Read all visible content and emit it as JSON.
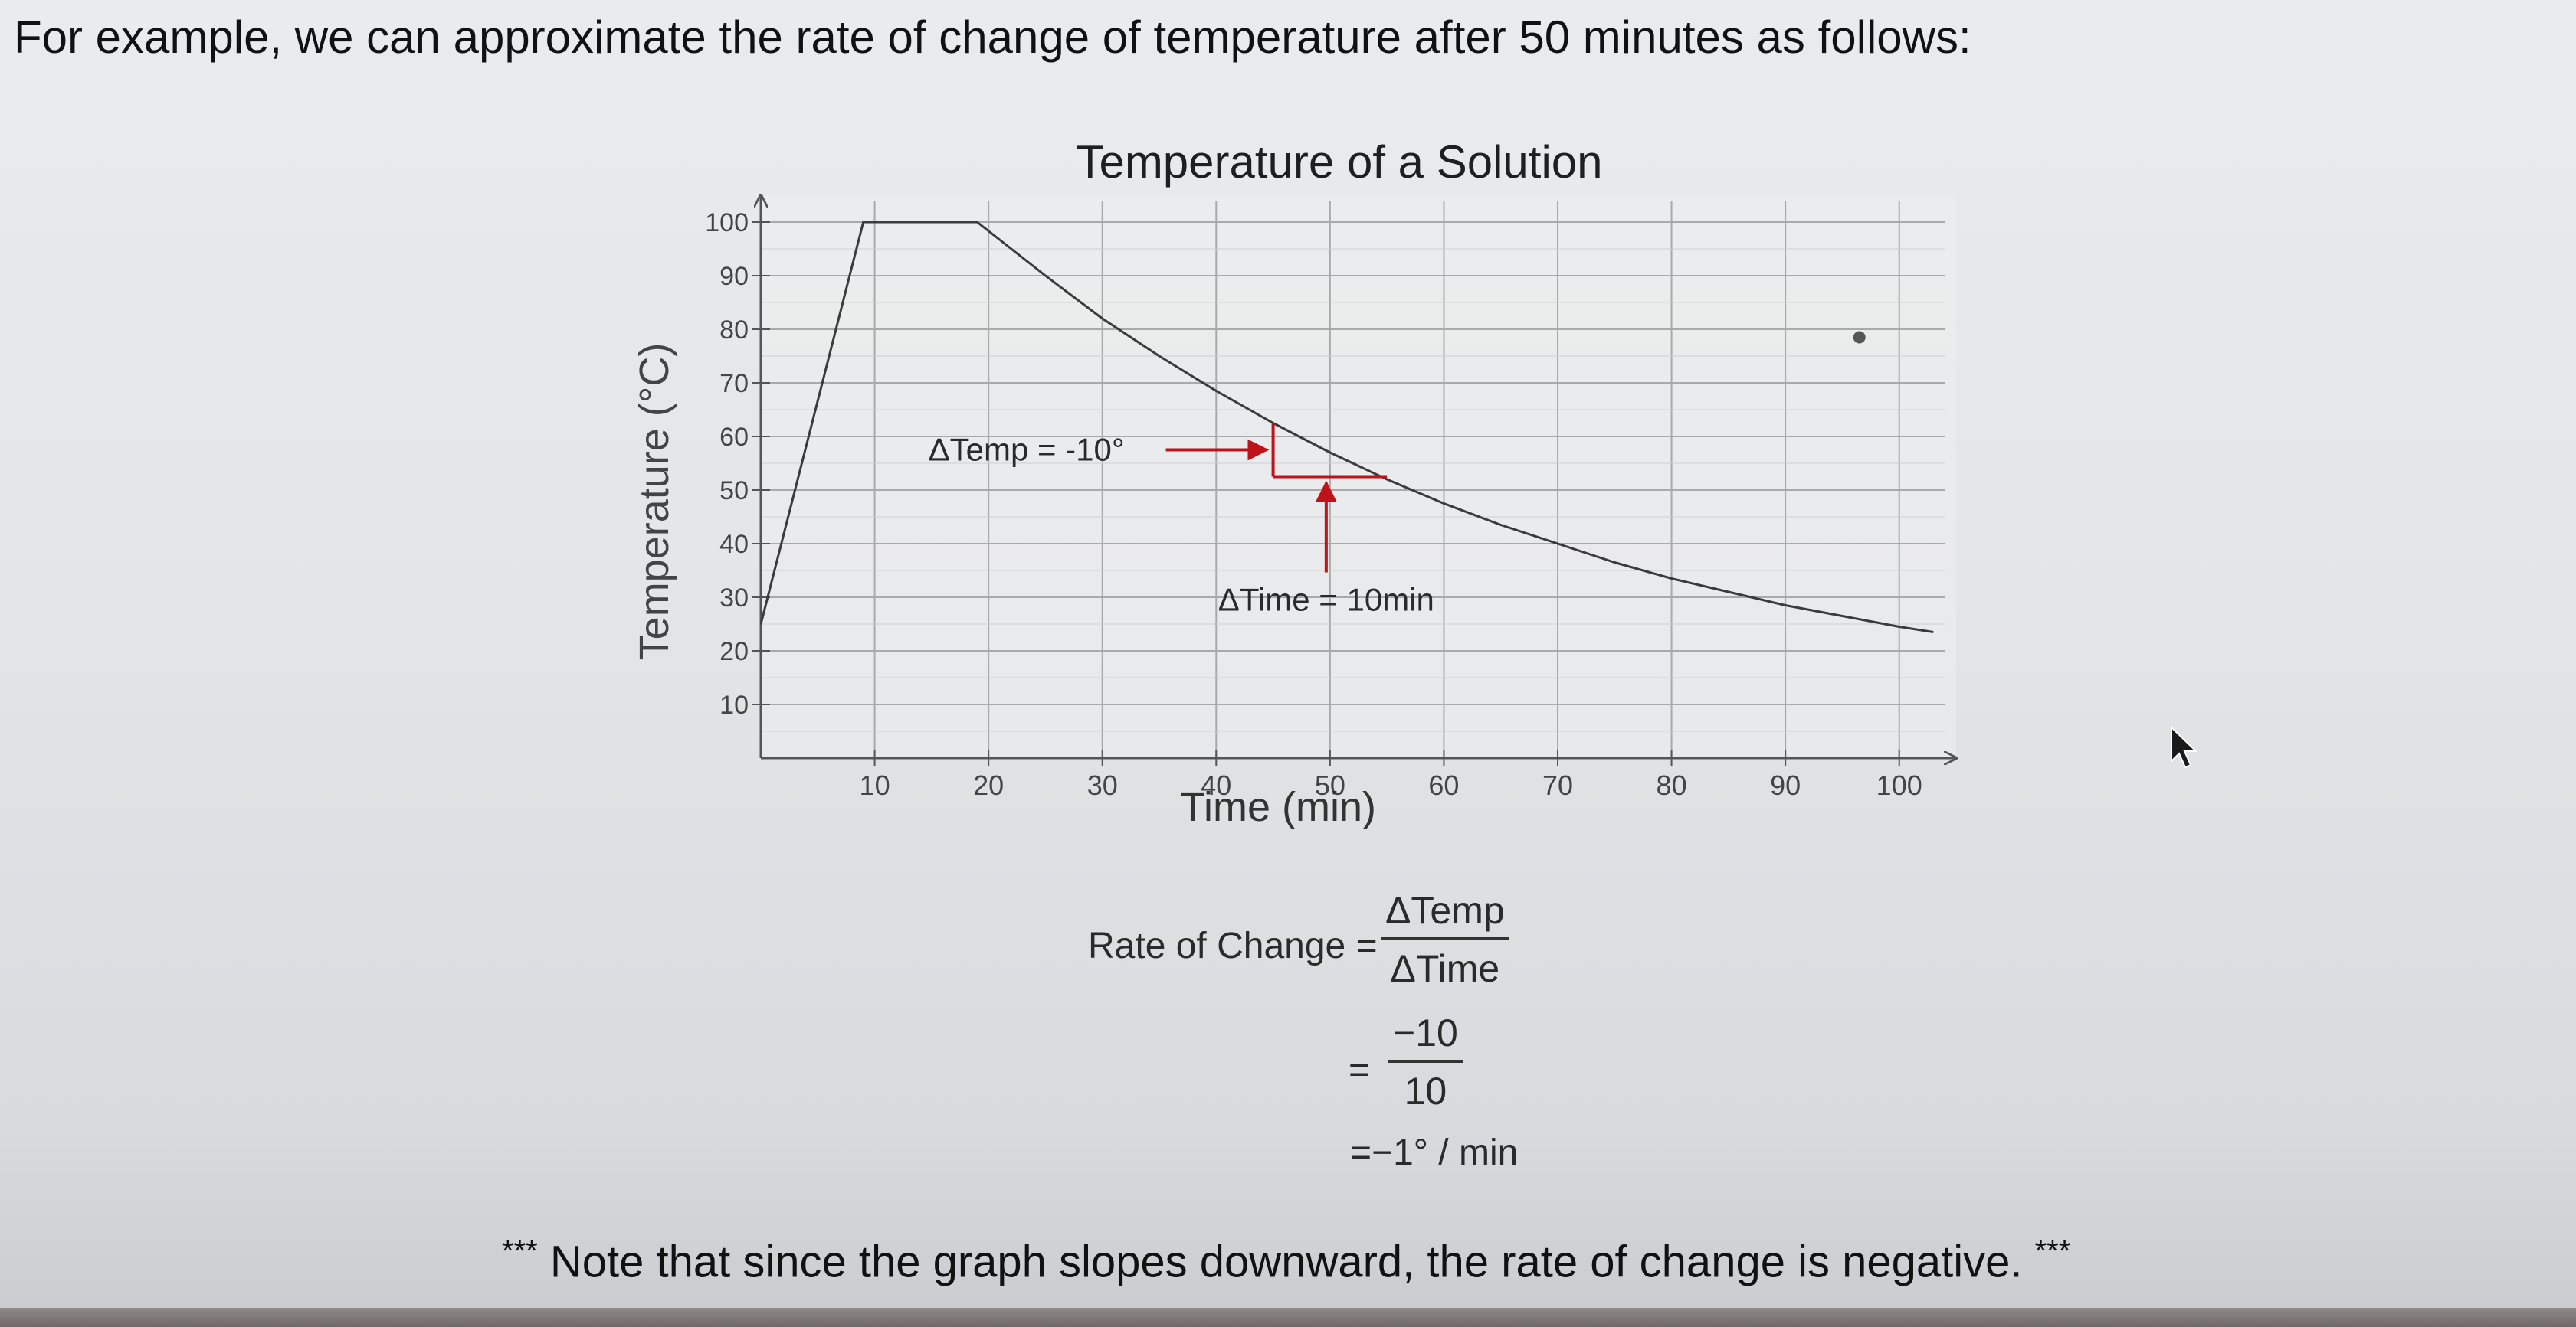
{
  "intro_text": "For example, we can approximate the rate of change of temperature after 50 minutes as follows:",
  "chart_data": {
    "type": "line",
    "title": "Temperature of a Solution",
    "xlabel": "Time (min)",
    "ylabel": "Temperature (°C)",
    "xlim": [
      0,
      105
    ],
    "ylim": [
      0,
      105
    ],
    "x_ticks": [
      10,
      20,
      30,
      40,
      50,
      60,
      70,
      80,
      90,
      100
    ],
    "y_ticks": [
      10,
      20,
      30,
      40,
      50,
      60,
      70,
      80,
      90,
      100
    ],
    "grid": true,
    "series": [
      {
        "name": "Temperature",
        "points": [
          [
            0,
            25
          ],
          [
            9,
            100
          ],
          [
            19,
            100
          ],
          [
            25,
            90
          ],
          [
            30,
            82
          ],
          [
            35,
            75
          ],
          [
            40,
            68.5
          ],
          [
            45,
            62.5
          ],
          [
            50,
            57
          ],
          [
            55,
            52
          ],
          [
            60,
            47.5
          ],
          [
            65,
            43.5
          ],
          [
            70,
            40
          ],
          [
            75,
            36.5
          ],
          [
            80,
            33.5
          ],
          [
            85,
            31
          ],
          [
            90,
            28.5
          ],
          [
            95,
            26.5
          ],
          [
            100,
            24.5
          ],
          [
            103,
            23.5
          ]
        ]
      }
    ],
    "annotations": {
      "delta_temp_label": "ΔTemp = -10°",
      "delta_time_label": "ΔTime = 10min",
      "triangle": {
        "x_start": 45,
        "x_end": 55,
        "y_top": 62.5,
        "y_bottom": 52.5
      }
    },
    "accent_color": "#c0121b",
    "line_color": "#3b3b3b"
  },
  "equation": {
    "lhs": "Rate of Change =",
    "frac1_num": "ΔTemp",
    "frac1_den": "ΔTime",
    "eq2": "=",
    "frac2_num": "−10",
    "frac2_den": "10",
    "result": "=−1° / min"
  },
  "note": {
    "stars_left": "***",
    "text": "Note that since the graph slopes downward, the rate of change is negative.",
    "stars_right": "***"
  }
}
